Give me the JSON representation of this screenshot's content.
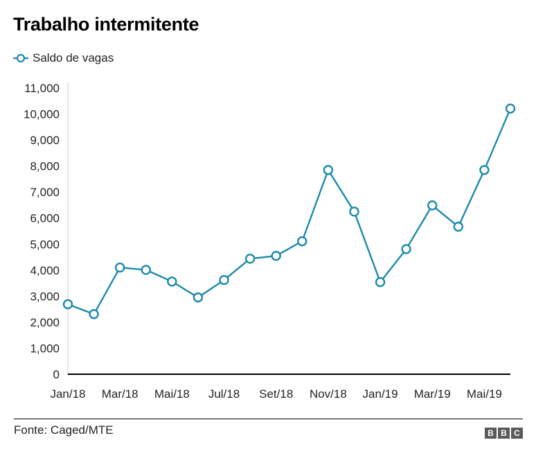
{
  "header": {
    "title": "Trabalho intermitente"
  },
  "legend": {
    "items": [
      {
        "label": "Saldo de vagas",
        "color": "#1a8aaa",
        "icon": "line-circle-marker-icon"
      }
    ]
  },
  "footer": {
    "source": "Fonte: Caged/MTE",
    "logo": [
      "B",
      "B",
      "C"
    ]
  },
  "colors": {
    "series": "#1a8aaa",
    "axis": "#000000",
    "yaxis_line": "#cccccc",
    "logo_bg": "#5a5a5a"
  },
  "chart_data": {
    "type": "line",
    "title": "Trabalho intermitente",
    "xlabel": "",
    "ylabel": "",
    "ylim": [
      0,
      11000
    ],
    "yticks": [
      0,
      1000,
      2000,
      3000,
      4000,
      5000,
      6000,
      7000,
      8000,
      9000,
      10000,
      11000
    ],
    "ytick_labels": [
      "0",
      "1,000",
      "2,000",
      "3,000",
      "4,000",
      "5,000",
      "6,000",
      "7,000",
      "8,000",
      "9,000",
      "10,000",
      "11,000"
    ],
    "xtick_labels": [
      "Jan/18",
      "Mar/18",
      "Mai/18",
      "Jul/18",
      "Set/18",
      "Nov/18",
      "Jan/19",
      "Mar/19",
      "Mai/19"
    ],
    "xtick_indices": [
      0,
      2,
      4,
      6,
      8,
      10,
      12,
      14,
      16
    ],
    "categories": [
      "Jan/18",
      "Fev/18",
      "Mar/18",
      "Abr/18",
      "Mai/18",
      "Jun/18",
      "Jul/18",
      "Ago/18",
      "Set/18",
      "Out/18",
      "Nov/18",
      "Dez/18",
      "Jan/19",
      "Fev/19",
      "Mar/19",
      "Abr/19",
      "Mai/19",
      "Jun/19"
    ],
    "series": [
      {
        "name": "Saldo de vagas",
        "values": [
          2690,
          2310,
          4100,
          4010,
          3560,
          2950,
          3620,
          4440,
          4550,
          5110,
          7850,
          6250,
          3540,
          4810,
          6490,
          5670,
          7850,
          10210
        ]
      }
    ],
    "grid": false,
    "legend_position": "top-left",
    "source": "Fonte: Caged/MTE"
  }
}
